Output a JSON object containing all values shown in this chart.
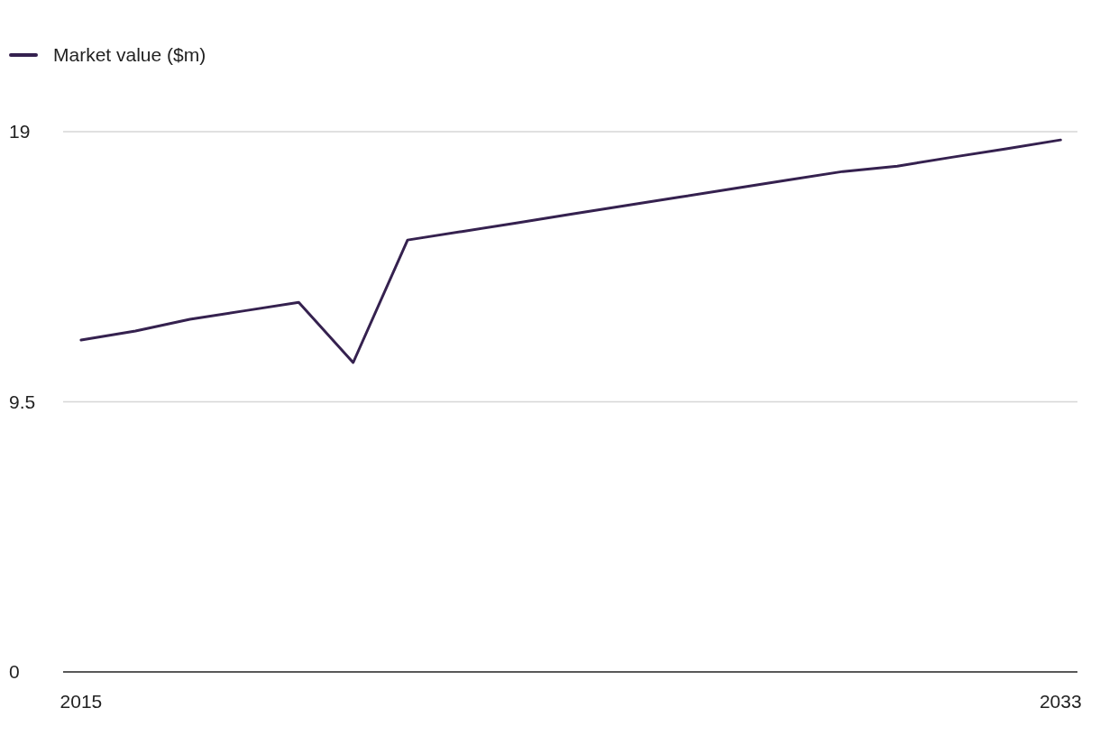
{
  "chart_data": {
    "type": "line",
    "x": [
      2015,
      2016,
      2017,
      2018,
      2019,
      2020,
      2021,
      2022,
      2023,
      2024,
      2025,
      2026,
      2027,
      2028,
      2029,
      2030,
      2031,
      2032,
      2033
    ],
    "series": [
      {
        "name": "Market value ($m)",
        "color": "#35214f",
        "values": [
          11.67,
          11.99,
          12.4,
          12.7,
          13.0,
          10.88,
          15.19,
          15.49,
          15.79,
          16.1,
          16.4,
          16.7,
          17.0,
          17.3,
          17.6,
          17.79,
          18.1,
          18.4,
          18.71
        ]
      }
    ],
    "xlim": [
      2014.67,
      2033.31
    ],
    "xticks": [
      2015,
      2033
    ],
    "ylim": [
      0,
      19
    ],
    "yticks": [
      0,
      9.5,
      19
    ],
    "grid": "y",
    "legend": "top left",
    "marker": "none",
    "line_style": "solid"
  }
}
